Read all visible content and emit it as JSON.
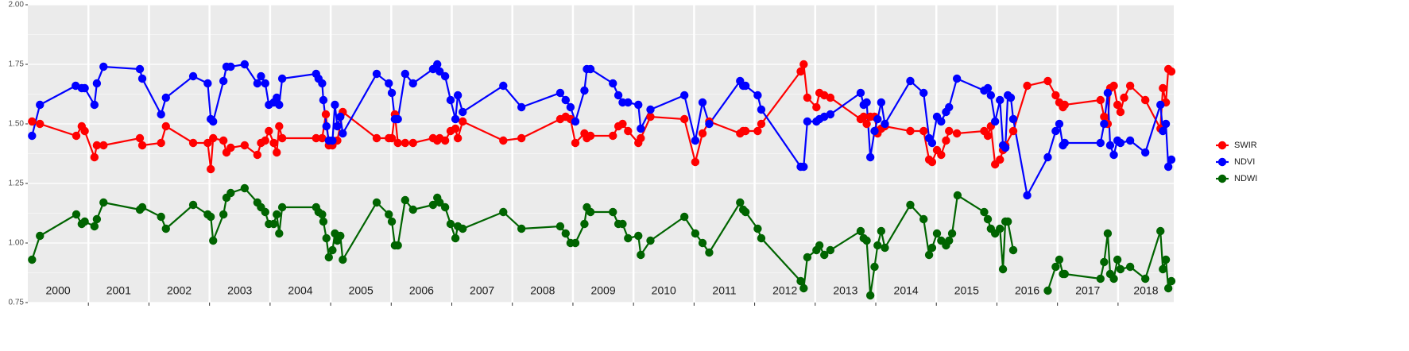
{
  "chart_data": {
    "type": "line",
    "xlim": [
      2000,
      2018.92
    ],
    "xticks": [
      {
        "value": 2000,
        "label": "2000"
      },
      {
        "value": 2001,
        "label": "2001"
      },
      {
        "value": 2002,
        "label": "2002"
      },
      {
        "value": 2003,
        "label": "2003"
      },
      {
        "value": 2004,
        "label": "2004"
      },
      {
        "value": 2005,
        "label": "2005"
      },
      {
        "value": 2006,
        "label": "2006"
      },
      {
        "value": 2007,
        "label": "2007"
      },
      {
        "value": 2008,
        "label": "2008"
      },
      {
        "value": 2009,
        "label": "2009"
      },
      {
        "value": 2010,
        "label": "2010"
      },
      {
        "value": 2011,
        "label": "2011"
      },
      {
        "value": 2012,
        "label": "2012"
      },
      {
        "value": 2013,
        "label": "2013"
      },
      {
        "value": 2014,
        "label": "2014"
      },
      {
        "value": 2015,
        "label": "2015"
      },
      {
        "value": 2016,
        "label": "2016"
      },
      {
        "value": 2017,
        "label": "2017"
      },
      {
        "value": 2018,
        "label": "2018"
      }
    ],
    "ylim": [
      0.75,
      2.0
    ],
    "yticks": [
      0.75,
      {
        "value": 1.0,
        "label": "1.00"
      },
      1.25,
      {
        "value": 1.5,
        "label": "1.50"
      },
      1.75,
      {
        "value": 2.0,
        "label": "2.00"
      }
    ],
    "grid": true,
    "legend": "right",
    "series": [
      {
        "name": "SWIR",
        "color": "#ff0000",
        "x": [
          2000.07,
          2000.2,
          2000.8,
          2000.89,
          2000.94,
          2001.1,
          2001.14,
          2001.25,
          2001.85,
          2001.89,
          2002.2,
          2002.28,
          2002.73,
          2002.97,
          2003.02,
          2003.06,
          2003.23,
          2003.28,
          2003.35,
          2003.58,
          2003.79,
          2003.85,
          2003.92,
          2003.98,
          2004.06,
          2004.11,
          2004.15,
          2004.2,
          2004.76,
          2004.86,
          2004.92,
          2004.97,
          2005.03,
          2005.11,
          2005.2,
          2005.76,
          2005.96,
          2006.01,
          2006.06,
          2006.11,
          2006.23,
          2006.36,
          2006.69,
          2006.76,
          2006.8,
          2006.89,
          2006.98,
          2007.06,
          2007.1,
          2007.18,
          2007.85,
          2008.15,
          2008.79,
          2008.88,
          2008.96,
          2009.04,
          2009.19,
          2009.23,
          2009.29,
          2009.66,
          2009.75,
          2009.82,
          2009.91,
          2010.08,
          2010.12,
          2010.28,
          2010.84,
          2011.02,
          2011.14,
          2011.25,
          2011.76,
          2011.81,
          2011.85,
          2012.05,
          2012.11,
          2012.76,
          2012.81,
          2012.87,
          2013.02,
          2013.07,
          2013.15,
          2013.25,
          2013.75,
          2013.8,
          2013.85,
          2013.91,
          2013.98,
          2014.03,
          2014.09,
          2014.15,
          2014.57,
          2014.79,
          2014.88,
          2014.93,
          2015.01,
          2015.08,
          2015.16,
          2015.21,
          2015.34,
          2015.79,
          2015.85,
          2015.9,
          2015.97,
          2016.05,
          2016.1,
          2016.14,
          2016.27,
          2016.5,
          2016.84,
          2016.97,
          2017.03,
          2017.09,
          2017.12,
          2017.71,
          2017.77,
          2017.83,
          2017.87,
          2017.93,
          2017.99,
          2018.04,
          2018.1,
          2018.2,
          2018.45,
          2018.7,
          2018.74,
          2018.79,
          2018.83,
          2018.88
        ],
        "values": [
          1.51,
          1.5,
          1.45,
          1.49,
          1.47,
          1.36,
          1.41,
          1.41,
          1.44,
          1.41,
          1.42,
          1.49,
          1.42,
          1.42,
          1.31,
          1.44,
          1.43,
          1.38,
          1.4,
          1.41,
          1.37,
          1.42,
          1.43,
          1.47,
          1.42,
          1.38,
          1.49,
          1.44,
          1.44,
          1.44,
          1.54,
          1.41,
          1.41,
          1.43,
          1.55,
          1.44,
          1.44,
          1.44,
          1.54,
          1.42,
          1.42,
          1.42,
          1.44,
          1.43,
          1.44,
          1.43,
          1.47,
          1.48,
          1.44,
          1.51,
          1.43,
          1.44,
          1.52,
          1.53,
          1.52,
          1.42,
          1.46,
          1.44,
          1.45,
          1.45,
          1.49,
          1.5,
          1.47,
          1.42,
          1.44,
          1.53,
          1.52,
          1.34,
          1.46,
          1.51,
          1.46,
          1.47,
          1.47,
          1.47,
          1.5,
          1.72,
          1.75,
          1.61,
          1.57,
          1.63,
          1.62,
          1.61,
          1.52,
          1.53,
          1.5,
          1.53,
          1.53,
          1.46,
          1.48,
          1.49,
          1.47,
          1.47,
          1.35,
          1.34,
          1.39,
          1.37,
          1.43,
          1.47,
          1.46,
          1.47,
          1.45,
          1.49,
          1.33,
          1.35,
          1.39,
          1.41,
          1.47,
          1.66,
          1.68,
          1.62,
          1.59,
          1.57,
          1.58,
          1.6,
          1.53,
          1.5,
          1.65,
          1.66,
          1.58,
          1.55,
          1.61,
          1.66,
          1.6,
          1.48,
          1.65,
          1.59,
          1.73,
          1.72
        ]
      },
      {
        "name": "NDVI",
        "color": "#0000ff",
        "x": [
          2000.07,
          2000.2,
          2000.79,
          2000.89,
          2000.94,
          2001.1,
          2001.14,
          2001.25,
          2001.85,
          2001.89,
          2002.2,
          2002.28,
          2002.73,
          2002.97,
          2003.02,
          2003.06,
          2003.23,
          2003.28,
          2003.35,
          2003.58,
          2003.79,
          2003.85,
          2003.92,
          2003.98,
          2004.06,
          2004.11,
          2004.15,
          2004.2,
          2004.76,
          2004.8,
          2004.86,
          2004.88,
          2004.93,
          2004.97,
          2005.03,
          2005.07,
          2005.11,
          2005.16,
          2005.2,
          2005.76,
          2005.96,
          2006.01,
          2006.06,
          2006.11,
          2006.23,
          2006.36,
          2006.69,
          2006.76,
          2006.8,
          2006.89,
          2006.98,
          2007.06,
          2007.1,
          2007.18,
          2007.85,
          2008.15,
          2008.79,
          2008.88,
          2008.96,
          2009.04,
          2009.19,
          2009.23,
          2009.29,
          2009.66,
          2009.75,
          2009.82,
          2009.91,
          2010.08,
          2010.12,
          2010.28,
          2010.84,
          2011.02,
          2011.14,
          2011.25,
          2011.76,
          2011.81,
          2011.85,
          2012.05,
          2012.11,
          2012.76,
          2012.81,
          2012.87,
          2013.02,
          2013.07,
          2013.15,
          2013.25,
          2013.75,
          2013.8,
          2013.85,
          2013.91,
          2013.98,
          2014.03,
          2014.09,
          2014.15,
          2014.57,
          2014.79,
          2014.88,
          2014.93,
          2015.01,
          2015.08,
          2015.16,
          2015.21,
          2015.34,
          2015.79,
          2015.85,
          2015.9,
          2015.97,
          2016.05,
          2016.1,
          2016.14,
          2016.18,
          2016.23,
          2016.27,
          2016.5,
          2016.84,
          2016.97,
          2017.03,
          2017.09,
          2017.12,
          2017.71,
          2017.77,
          2017.83,
          2017.87,
          2017.93,
          2017.99,
          2018.04,
          2018.2,
          2018.45,
          2018.7,
          2018.74,
          2018.79,
          2018.83,
          2018.88
        ],
        "values": [
          1.45,
          1.58,
          1.66,
          1.65,
          1.65,
          1.58,
          1.67,
          1.74,
          1.73,
          1.69,
          1.54,
          1.61,
          1.7,
          1.67,
          1.52,
          1.51,
          1.68,
          1.74,
          1.74,
          1.75,
          1.67,
          1.7,
          1.67,
          1.58,
          1.59,
          1.61,
          1.58,
          1.69,
          1.71,
          1.69,
          1.67,
          1.6,
          1.49,
          1.43,
          1.43,
          1.58,
          1.49,
          1.53,
          1.46,
          1.71,
          1.67,
          1.63,
          1.52,
          1.52,
          1.71,
          1.67,
          1.73,
          1.75,
          1.72,
          1.7,
          1.6,
          1.52,
          1.62,
          1.55,
          1.66,
          1.57,
          1.63,
          1.6,
          1.57,
          1.51,
          1.64,
          1.73,
          1.73,
          1.67,
          1.62,
          1.59,
          1.59,
          1.58,
          1.48,
          1.56,
          1.62,
          1.43,
          1.59,
          1.5,
          1.68,
          1.66,
          1.66,
          1.62,
          1.56,
          1.32,
          1.32,
          1.51,
          1.51,
          1.52,
          1.53,
          1.54,
          1.63,
          1.58,
          1.59,
          1.36,
          1.47,
          1.52,
          1.59,
          1.5,
          1.68,
          1.63,
          1.44,
          1.42,
          1.53,
          1.51,
          1.55,
          1.57,
          1.69,
          1.64,
          1.65,
          1.62,
          1.51,
          1.6,
          1.41,
          1.4,
          1.62,
          1.61,
          1.52,
          1.2,
          1.36,
          1.47,
          1.5,
          1.41,
          1.42,
          1.42,
          1.5,
          1.63,
          1.41,
          1.37,
          1.43,
          1.42,
          1.43,
          1.38,
          1.58,
          1.47,
          1.5,
          1.32,
          1.35
        ]
      },
      {
        "name": "NDWI",
        "color": "#006400",
        "x": [
          2000.07,
          2000.2,
          2000.8,
          2000.89,
          2000.94,
          2001.1,
          2001.14,
          2001.25,
          2001.85,
          2001.89,
          2002.2,
          2002.28,
          2002.73,
          2002.97,
          2003.02,
          2003.06,
          2003.23,
          2003.28,
          2003.35,
          2003.58,
          2003.79,
          2003.85,
          2003.92,
          2003.98,
          2004.06,
          2004.11,
          2004.15,
          2004.2,
          2004.76,
          2004.8,
          2004.86,
          2004.88,
          2004.93,
          2004.97,
          2005.03,
          2005.07,
          2005.11,
          2005.16,
          2005.2,
          2005.76,
          2005.96,
          2006.01,
          2006.06,
          2006.11,
          2006.23,
          2006.36,
          2006.69,
          2006.76,
          2006.8,
          2006.89,
          2006.98,
          2007.06,
          2007.1,
          2007.18,
          2007.85,
          2008.15,
          2008.79,
          2008.88,
          2008.96,
          2009.04,
          2009.19,
          2009.23,
          2009.29,
          2009.66,
          2009.75,
          2009.82,
          2009.91,
          2010.08,
          2010.12,
          2010.28,
          2010.84,
          2011.02,
          2011.14,
          2011.25,
          2011.76,
          2011.81,
          2011.85,
          2012.05,
          2012.11,
          2012.76,
          2012.81,
          2012.87,
          2013.02,
          2013.07,
          2013.15,
          2013.25,
          2013.75,
          2013.8,
          2013.85,
          2013.91,
          2013.98,
          2014.03,
          2014.09,
          2014.15,
          2014.57,
          2014.79,
          2014.88,
          2014.93,
          2015.01,
          2015.08,
          2015.16,
          2015.21,
          2015.26,
          2015.35,
          2015.79,
          2015.85,
          2015.9,
          2015.97,
          2016.05,
          2016.1,
          2016.14,
          2016.18,
          2016.27,
          2016.5,
          2016.84,
          2016.97,
          2017.03,
          2017.09,
          2017.12,
          2017.71,
          2017.77,
          2017.83,
          2017.87,
          2017.93,
          2017.99,
          2018.04,
          2018.2,
          2018.45,
          2018.7,
          2018.74,
          2018.79,
          2018.83,
          2018.88
        ],
        "values": [
          0.93,
          1.03,
          1.12,
          1.08,
          1.09,
          1.07,
          1.1,
          1.17,
          1.14,
          1.15,
          1.11,
          1.06,
          1.16,
          1.12,
          1.11,
          1.01,
          1.12,
          1.19,
          1.21,
          1.23,
          1.17,
          1.15,
          1.13,
          1.08,
          1.08,
          1.12,
          1.04,
          1.15,
          1.15,
          1.13,
          1.12,
          1.09,
          1.02,
          0.94,
          0.97,
          1.04,
          1.01,
          1.03,
          0.93,
          1.17,
          1.12,
          1.09,
          0.99,
          0.99,
          1.18,
          1.14,
          1.16,
          1.19,
          1.17,
          1.15,
          1.08,
          1.02,
          1.07,
          1.06,
          1.13,
          1.06,
          1.07,
          1.04,
          1.0,
          1.0,
          1.08,
          1.15,
          1.13,
          1.13,
          1.08,
          1.08,
          1.02,
          1.03,
          0.95,
          1.01,
          1.11,
          1.04,
          1.0,
          0.96,
          1.17,
          1.14,
          1.13,
          1.06,
          1.02,
          0.84,
          0.81,
          0.94,
          0.97,
          0.99,
          0.95,
          0.97,
          1.05,
          1.02,
          1.01,
          0.78,
          0.9,
          0.99,
          1.05,
          0.98,
          1.16,
          1.1,
          0.95,
          0.98,
          1.04,
          1.01,
          0.99,
          1.01,
          1.04,
          1.2,
          1.13,
          1.1,
          1.06,
          1.04,
          1.06,
          0.89,
          1.09,
          1.09,
          0.97,
          null,
          0.8,
          0.9,
          0.93,
          0.87,
          0.87,
          0.85,
          0.92,
          1.04,
          0.87,
          0.85,
          0.93,
          0.89,
          0.9,
          0.85,
          1.05,
          0.89,
          0.93,
          0.81,
          0.84
        ]
      }
    ]
  }
}
